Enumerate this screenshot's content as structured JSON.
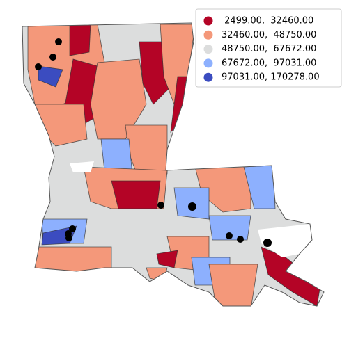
{
  "legend": {
    "entries": [
      {
        "label": " 2499.00,  32460.00",
        "color": "#b40426"
      },
      {
        "label": "32460.00,  48750.00",
        "color": "#f4987a"
      },
      {
        "label": "48750.00,  67672.00",
        "color": "#dcdddd"
      },
      {
        "label": "67672.00,  97031.00",
        "color": "#8db0fe"
      },
      {
        "label": "97031.00, 170278.00",
        "color": "#3b4cc0"
      }
    ]
  }
}
